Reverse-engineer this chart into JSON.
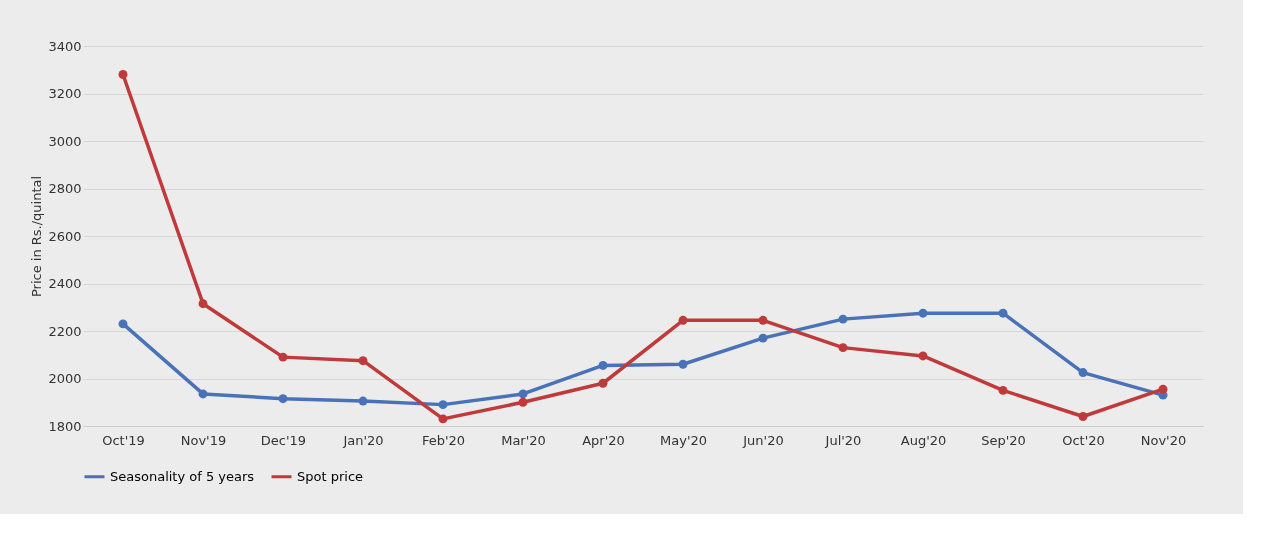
{
  "chart_data": {
    "type": "line",
    "ylabel": "Price in Rs./quintal",
    "categories": [
      "Oct'19",
      "Nov'19",
      "Dec'19",
      "Jan'20",
      "Feb'20",
      "Mar'20",
      "Apr'20",
      "May'20",
      "Jun'20",
      "Jul'20",
      "Aug'20",
      "Sep'20",
      "Oct'20",
      "Nov'20"
    ],
    "series": [
      {
        "name": "Seasonality of 5 years",
        "color": "#4a72b8",
        "values": [
          2230,
          1935,
          1915,
          1905,
          1890,
          1935,
          2055,
          2060,
          2170,
          2250,
          2275,
          2275,
          2025,
          1930
        ]
      },
      {
        "name": "Spot price",
        "color": "#c0393b",
        "values": [
          3280,
          2315,
          2090,
          2075,
          1830,
          1900,
          1980,
          2245,
          2245,
          2130,
          2095,
          1950,
          1840,
          1955
        ]
      }
    ],
    "ylim": [
      1800,
      3400
    ],
    "yticks": [
      1800,
      2000,
      2200,
      2400,
      2600,
      2800,
      3000,
      3200,
      3400
    ],
    "grid": "y",
    "legend": "bottom",
    "marker": "circle",
    "line_style": "solid"
  }
}
